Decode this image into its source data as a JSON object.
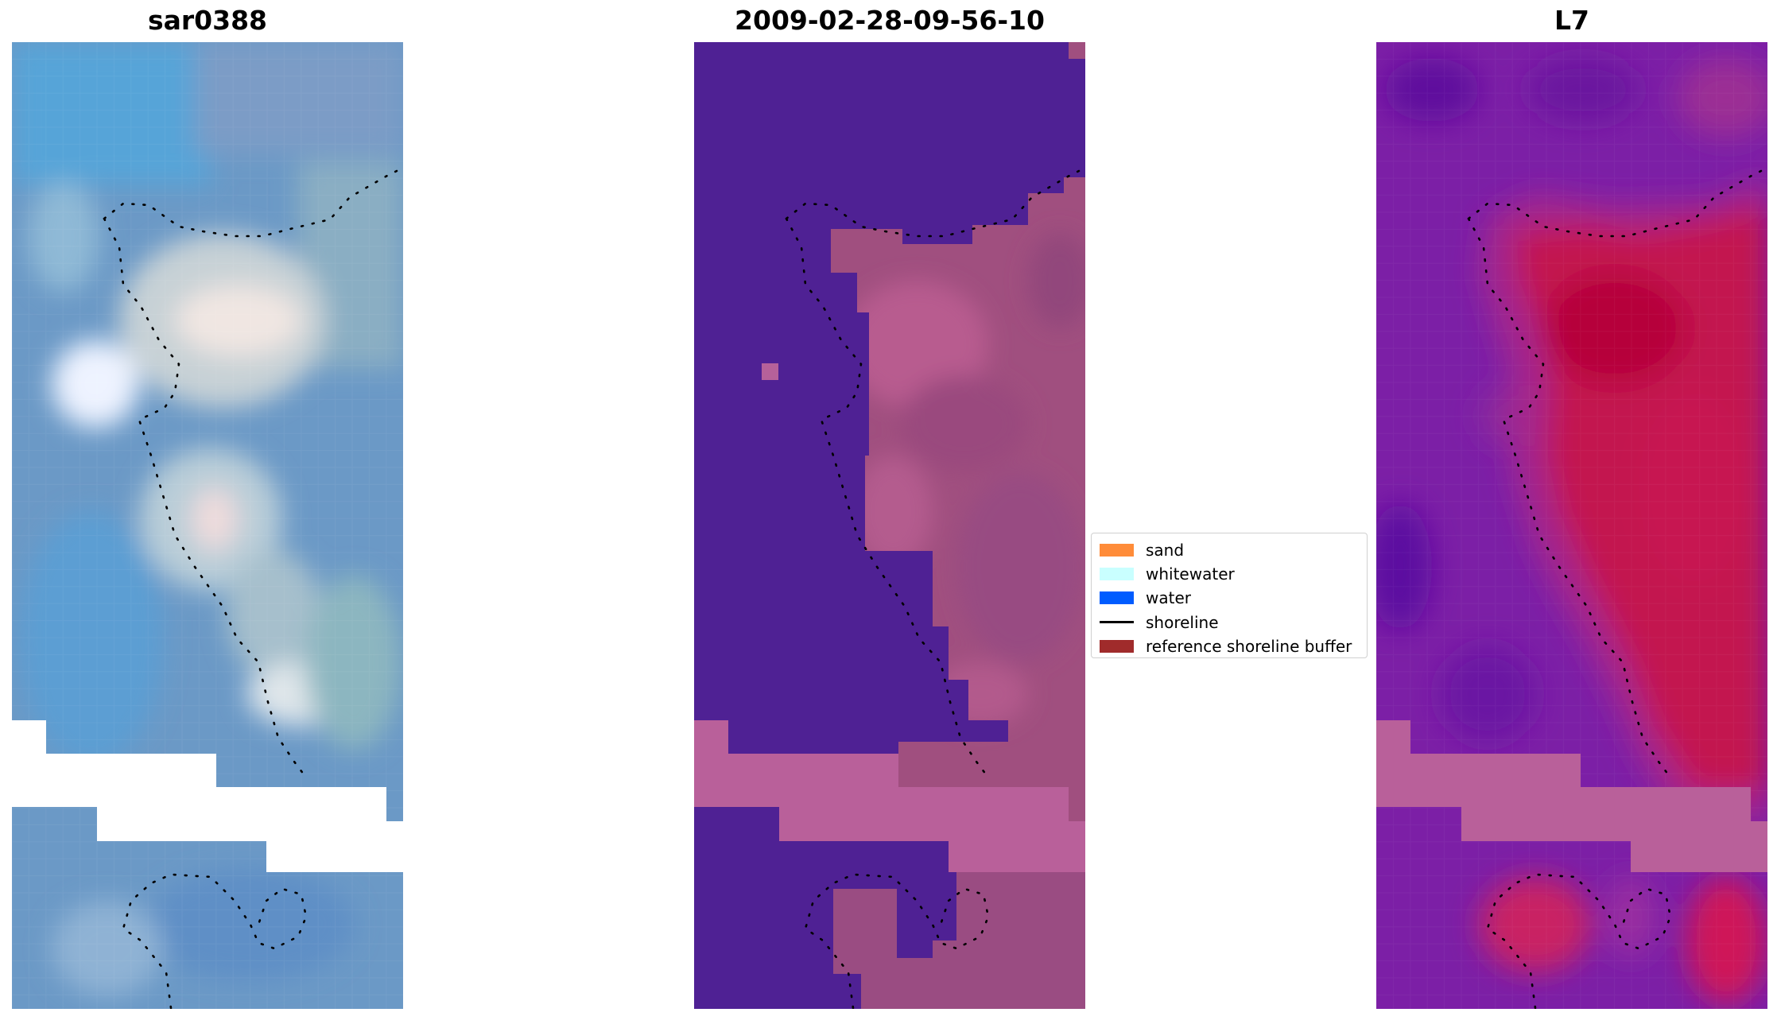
{
  "panels": [
    {
      "title": "sar0388",
      "kind": "rgb-image",
      "colors": {
        "base": "#6a9ac9",
        "accent_blue": "#4c9ad6",
        "bright": "#f4e9e4",
        "pale": "#bfd3de",
        "nodata": "#ffffff"
      }
    },
    {
      "title": "2009-02-28-09-56-10",
      "kind": "classified-image",
      "colors": {
        "water": "#4f2194",
        "land": "#a0507f",
        "land_light": "#b66499",
        "nodata_fill": "#b9609a"
      }
    },
    {
      "title": "L7",
      "kind": "mndwi-image",
      "colors": {
        "water": "#7a1fa6",
        "water_dark": "#5a0fa0",
        "land": "#c5174d",
        "land_dark": "#b6003a",
        "transition": "#a02c90",
        "nodata_fill": "#b9609a"
      }
    }
  ],
  "legend": {
    "items": [
      {
        "label": "sand",
        "type": "patch",
        "color": "#ff8c39"
      },
      {
        "label": "whitewater",
        "type": "patch",
        "color": "#c9ffff"
      },
      {
        "label": "water",
        "type": "patch",
        "color": "#005cff"
      },
      {
        "label": "shoreline",
        "type": "line",
        "color": "#000000"
      },
      {
        "label": "reference shoreline buffer",
        "type": "patch",
        "color": "#a02b2b"
      }
    ]
  }
}
